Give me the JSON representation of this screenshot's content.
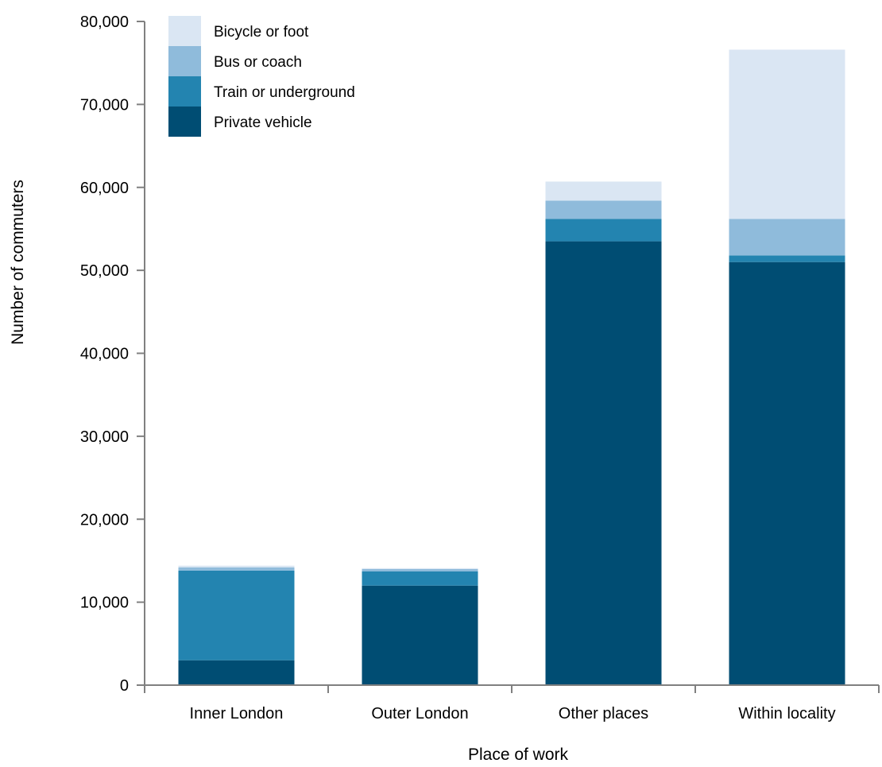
{
  "chart_data": {
    "type": "bar",
    "stacked": true,
    "categories": [
      "Inner London",
      "Outer London",
      "Other places",
      "Within locality"
    ],
    "series": [
      {
        "name": "Private vehicle",
        "color": "#004d73",
        "values": [
          3000,
          12000,
          53500,
          51000
        ]
      },
      {
        "name": "Train or underground",
        "color": "#2384b0",
        "values": [
          10800,
          1700,
          2700,
          800
        ]
      },
      {
        "name": "Bus or coach",
        "color": "#8fbbdb",
        "values": [
          400,
          300,
          2200,
          4400
        ]
      },
      {
        "name": "Bicycle or foot",
        "color": "#dae6f3",
        "values": [
          200,
          100,
          2300,
          20400
        ]
      }
    ],
    "title": "",
    "xlabel": "Place of work",
    "ylabel": "Number of commuters",
    "ylim": [
      0,
      80000
    ],
    "yticks": [
      0,
      10000,
      20000,
      30000,
      40000,
      50000,
      60000,
      70000,
      80000
    ],
    "ytick_labels": [
      "0",
      "10,000",
      "20,000",
      "30,000",
      "40,000",
      "50,000",
      "60,000",
      "70,000",
      "80,000"
    ],
    "grid": false,
    "legend_position": "top-left"
  }
}
